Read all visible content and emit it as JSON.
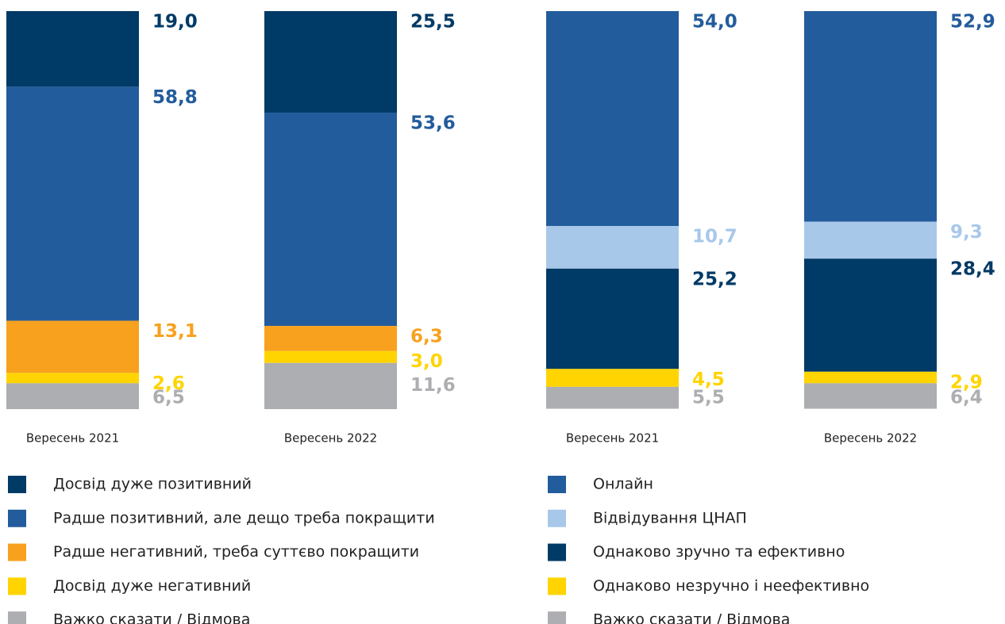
{
  "chart_data": [
    {
      "type": "stacked_bar",
      "categories": [
        "Вересень 2021",
        "Вересень 2022"
      ],
      "ylim": [
        0,
        100
      ],
      "series": [
        {
          "name": "Досвід дуже позитивний",
          "color": "#003a66",
          "values": [
            19.0,
            25.5
          ],
          "value_labels": [
            "19,0",
            "25,5"
          ]
        },
        {
          "name": "Радше позитивний, але дещо треба покращити",
          "color": "#235c9c",
          "values": [
            58.8,
            53.6
          ],
          "value_labels": [
            "58,8",
            "53,6"
          ]
        },
        {
          "name": "Радше негативний, треба суттєво покращити",
          "color": "#f7a11e",
          "values": [
            13.1,
            6.3
          ],
          "value_labels": [
            "13,1",
            "6,3"
          ]
        },
        {
          "name": "Досвід дуже негативний",
          "color": "#ffd400",
          "values": [
            2.6,
            3.0
          ],
          "value_labels": [
            "2,6",
            "3,0"
          ]
        },
        {
          "name": "Важко сказати / Відмова",
          "color": "#acaeb1",
          "values": [
            6.5,
            11.6
          ],
          "value_labels": [
            "6,5",
            "11,6"
          ]
        }
      ]
    },
    {
      "type": "stacked_bar",
      "categories": [
        "Вересень 2021",
        "Вересень 2022"
      ],
      "ylim": [
        0,
        100
      ],
      "series": [
        {
          "name": "Онлайн",
          "color": "#235c9c",
          "values": [
            54.0,
            52.9
          ],
          "value_labels": [
            "54,0",
            "52,9"
          ]
        },
        {
          "name": "Відвідування ЦНАП",
          "color": "#a8c8ea",
          "values": [
            10.7,
            9.3
          ],
          "value_labels": [
            "10,7",
            "9,3"
          ]
        },
        {
          "name": "Однаково зручно та ефективно",
          "color": "#003a66",
          "values": [
            25.2,
            28.4
          ],
          "value_labels": [
            "25,2",
            "28,4"
          ]
        },
        {
          "name": "Однаково незручно і неефективно",
          "color": "#ffd400",
          "values": [
            4.5,
            2.9
          ],
          "value_labels": [
            "4,5",
            "2,9"
          ]
        },
        {
          "name": "Важко сказати / Відмова",
          "color": "#acaeb1",
          "values": [
            5.5,
            6.4
          ],
          "value_labels": [
            "5,5",
            "6,4"
          ]
        }
      ]
    }
  ]
}
